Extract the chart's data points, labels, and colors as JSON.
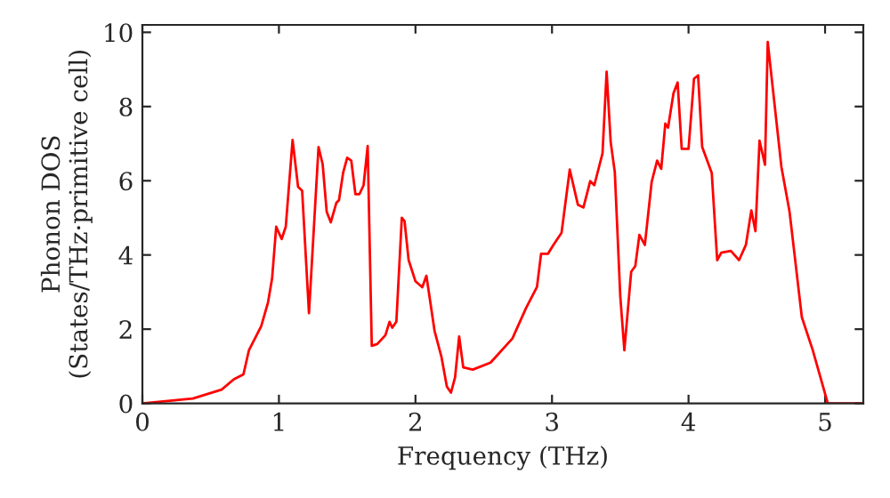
{
  "chart_data": {
    "type": "line",
    "xlabel": "Frequency (THz)",
    "ylabel": "Phonon DOS\n(States/THz·primitive cell)",
    "xlim": [
      0,
      5.28
    ],
    "ylim": [
      0,
      10.2
    ],
    "xticks": [
      0,
      1,
      2,
      3,
      4,
      5
    ],
    "yticks": [
      0,
      2,
      4,
      6,
      8,
      10
    ],
    "grid": false,
    "legend": false,
    "series": [
      {
        "color": "#ff0000",
        "x": [
          0,
          0.37,
          0.58,
          0.67,
          0.74,
          0.78,
          0.87,
          0.92,
          0.95,
          0.98,
          1.02,
          1.05,
          1.1,
          1.14,
          1.17,
          1.22,
          1.29,
          1.32,
          1.35,
          1.38,
          1.42,
          1.44,
          1.47,
          1.5,
          1.53,
          1.56,
          1.59,
          1.62,
          1.65,
          1.68,
          1.72,
          1.78,
          1.81,
          1.83,
          1.86,
          1.9,
          1.92,
          1.95,
          2.0,
          2.05,
          2.08,
          2.14,
          2.19,
          2.23,
          2.26,
          2.29,
          2.32,
          2.35,
          2.42,
          2.55,
          2.71,
          2.81,
          2.89,
          2.92,
          2.97,
          3.01,
          3.07,
          3.13,
          3.19,
          3.23,
          3.28,
          3.31,
          3.37,
          3.4,
          3.43,
          3.46,
          3.5,
          3.53,
          3.58,
          3.61,
          3.64,
          3.68,
          3.73,
          3.77,
          3.8,
          3.83,
          3.85,
          3.89,
          3.92,
          3.95,
          4.0,
          4.04,
          4.07,
          4.1,
          4.17,
          4.21,
          4.24,
          4.31,
          4.37,
          4.42,
          4.46,
          4.49,
          4.52,
          4.56,
          4.58,
          4.68,
          4.74,
          4.83,
          4.91,
          5.02,
          5.28
        ],
        "values": [
          0,
          0.13,
          0.37,
          0.65,
          0.78,
          1.43,
          2.08,
          2.72,
          3.37,
          4.76,
          4.43,
          4.76,
          7.1,
          5.84,
          5.73,
          2.43,
          6.91,
          6.45,
          5.16,
          4.88,
          5.4,
          5.48,
          6.21,
          6.62,
          6.54,
          5.64,
          5.64,
          5.88,
          6.94,
          1.55,
          1.6,
          1.84,
          2.2,
          2.04,
          2.2,
          5.0,
          4.91,
          3.86,
          3.29,
          3.13,
          3.44,
          1.95,
          1.26,
          0.45,
          0.29,
          0.7,
          1.8,
          0.97,
          0.91,
          1.1,
          1.75,
          2.57,
          3.14,
          4.03,
          4.03,
          4.27,
          4.6,
          6.3,
          5.35,
          5.28,
          5.99,
          5.88,
          6.74,
          8.94,
          7.04,
          6.23,
          2.89,
          1.43,
          3.55,
          3.7,
          4.54,
          4.27,
          5.97,
          6.54,
          6.32,
          7.54,
          7.43,
          8.36,
          8.65,
          6.86,
          6.86,
          8.75,
          8.84,
          6.91,
          6.21,
          3.86,
          4.06,
          4.11,
          3.86,
          4.27,
          5.2,
          4.64,
          7.08,
          6.43,
          9.74,
          6.38,
          5.16,
          2.32,
          1.43,
          0,
          0
        ]
      }
    ]
  }
}
